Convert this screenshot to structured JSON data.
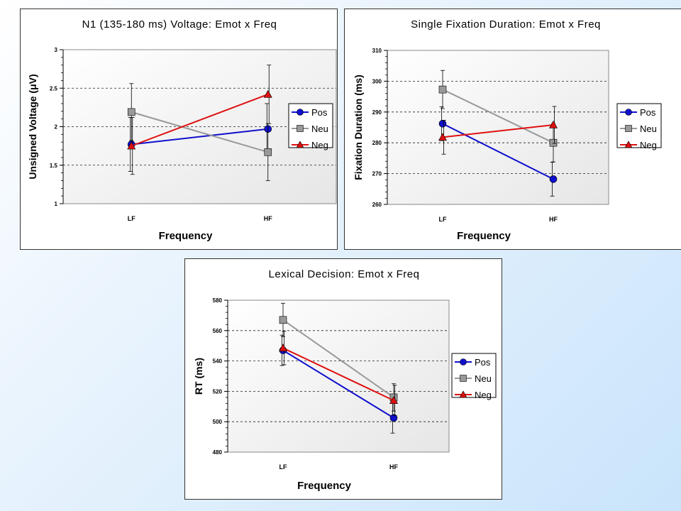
{
  "colors": {
    "Pos": "#1010cc",
    "Neu": "#999999",
    "Neg": "#e01010",
    "grid": "#222222",
    "plot_bg_from": "#ffffff",
    "plot_bg_to": "#e6e6e6"
  },
  "chart_data": [
    {
      "type": "line",
      "title": "N1 (135-180 ms) Voltage:  Emot x Freq",
      "xlabel": "Frequency",
      "ylabel": "Unsigned Voltage (μV)",
      "categories": [
        "LF",
        "HF"
      ],
      "ylim": [
        1,
        3
      ],
      "yticks": [
        1,
        1.5,
        2,
        2.5,
        3
      ],
      "ytick_labels": [
        "1",
        "1.5",
        "2",
        "2.5",
        "3"
      ],
      "grid": "horizontal dashed",
      "legend_position": "right",
      "series": [
        {
          "name": "Pos",
          "marker": "circle",
          "values": [
            1.77,
            1.97
          ],
          "error": [
            0.35,
            0.33
          ]
        },
        {
          "name": "Neu",
          "marker": "square",
          "values": [
            2.19,
            1.67
          ],
          "error": [
            0.37,
            0.37
          ]
        },
        {
          "name": "Neg",
          "marker": "triangle",
          "values": [
            1.75,
            2.42
          ],
          "error": [
            0.37,
            0.38
          ]
        }
      ]
    },
    {
      "type": "line",
      "title": "Single Fixation Duration:  Emot x Freq",
      "xlabel": "Frequency",
      "ylabel": "Fixation Duration (ms)",
      "categories": [
        "LF",
        "HF"
      ],
      "ylim": [
        260,
        310
      ],
      "yticks": [
        260,
        270,
        280,
        290,
        300,
        310
      ],
      "ytick_labels": [
        "260",
        "270",
        "280",
        "290",
        "300",
        "310"
      ],
      "grid": "horizontal dashed",
      "legend_position": "right",
      "series": [
        {
          "name": "Pos",
          "marker": "circle",
          "values": [
            286.2,
            268.2
          ],
          "error": [
            5.5,
            5.5
          ]
        },
        {
          "name": "Neu",
          "marker": "square",
          "values": [
            297.3,
            280.0
          ],
          "error": [
            6.2,
            6.2
          ]
        },
        {
          "name": "Neg",
          "marker": "triangle",
          "values": [
            281.8,
            285.8
          ],
          "error": [
            5.5,
            6.0
          ]
        }
      ]
    },
    {
      "type": "line",
      "title": "Lexical Decision:  Emot x Freq",
      "xlabel": "Frequency",
      "ylabel": "RT (ms)",
      "categories": [
        "LF",
        "HF"
      ],
      "ylim": [
        480,
        580
      ],
      "yticks": [
        480,
        500,
        520,
        540,
        560,
        580
      ],
      "ytick_labels": [
        "480",
        "500",
        "520",
        "540",
        "560",
        "580"
      ],
      "grid": "horizontal dashed",
      "legend_position": "right",
      "series": [
        {
          "name": "Pos",
          "marker": "circle",
          "values": [
            547,
            502.5
          ],
          "error": [
            10,
            10
          ]
        },
        {
          "name": "Neu",
          "marker": "square",
          "values": [
            567,
            516
          ],
          "error": [
            11,
            9
          ]
        },
        {
          "name": "Neg",
          "marker": "triangle",
          "values": [
            548.5,
            514
          ],
          "error": [
            11,
            10
          ]
        }
      ]
    }
  ]
}
